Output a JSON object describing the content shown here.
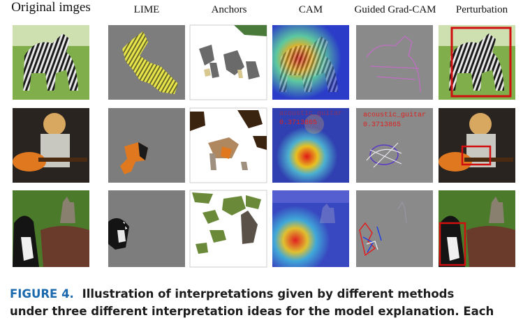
{
  "figure": {
    "headers": [
      "Original imges",
      "LIME",
      "Anchors",
      "CAM",
      "Guided Grad-CAM",
      "Perturbation"
    ],
    "overlay_labels": {
      "class_name": "acoustic_guitar",
      "score": "0.3713865"
    },
    "caption": {
      "label": "FIGURE 4.",
      "lines": [
        "Illustration of interpretations given by different methods",
        "under three different interpretation ideas for the model explanation. Each"
      ]
    }
  }
}
